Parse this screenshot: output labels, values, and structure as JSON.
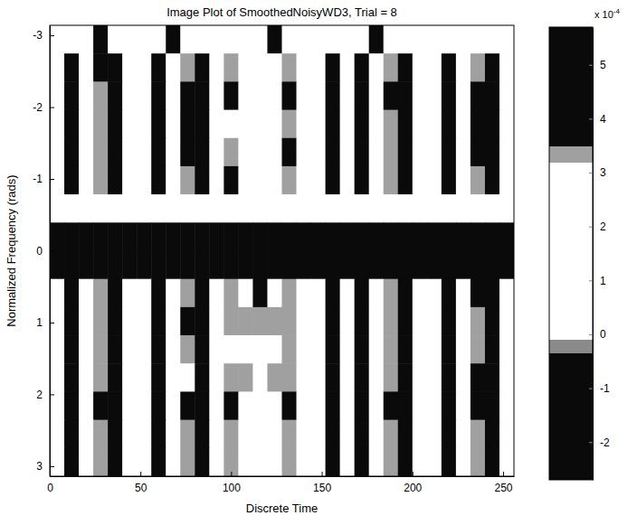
{
  "chart_data": {
    "type": "heatmap",
    "title": "Image Plot of SmoothedNoisyWD3, Trial = 8",
    "x_label": "Discrete Time",
    "y_label": "Normalized Frequency (rads)",
    "xlim": [
      0,
      256
    ],
    "xticks": [
      0,
      50,
      100,
      150,
      200,
      250
    ],
    "ylim": [
      -3.14,
      3.14
    ],
    "yticks": [
      -3,
      -2,
      -1,
      0,
      1,
      2,
      3
    ],
    "x_edges": [
      0,
      8,
      16,
      24,
      32,
      40,
      48,
      56,
      64,
      72,
      80,
      88,
      96,
      104,
      112,
      120,
      128,
      136,
      144,
      152,
      160,
      168,
      176,
      184,
      192,
      200,
      208,
      216,
      224,
      232,
      240,
      248,
      256
    ],
    "y_edges": [
      -3.14,
      -2.7475,
      -2.355,
      -1.9625,
      -1.57,
      -1.1775,
      -0.785,
      -0.3925,
      0,
      0.3925,
      0.785,
      1.1775,
      1.57,
      1.9625,
      2.355,
      2.7475,
      3.14
    ],
    "cells": [
      [
        1.1,
        1.3,
        0.9,
        4.2,
        1.0,
        1.2,
        1.4,
        1.1,
        4.0,
        1.3,
        1.2,
        1.0,
        1.5,
        1.3,
        1.1,
        4.3,
        1.2,
        1.4,
        1.0,
        1.3,
        1.1,
        1.2,
        4.1,
        1.3,
        1.0,
        1.2,
        1.4,
        1.1,
        1.3,
        1.2,
        1.0,
        1.1
      ],
      [
        1.0,
        -1.0,
        1.6,
        3.5,
        -0.8,
        1.5,
        2.0,
        4.2,
        1.4,
        3.4,
        -0.7,
        1.6,
        3.3,
        1.3,
        2.5,
        1.8,
        3.4,
        1.5,
        2.3,
        -0.6,
        1.4,
        4.0,
        1.7,
        3.3,
        -0.5,
        1.5,
        2.0,
        -0.8,
        1.6,
        3.4,
        -1.0,
        1.2
      ],
      [
        1.3,
        -1.3,
        1.9,
        3.3,
        -1.0,
        1.7,
        2.4,
        4.4,
        1.6,
        3.6,
        -0.9,
        1.8,
        3.5,
        1.5,
        2.7,
        2.0,
        3.6,
        1.7,
        2.5,
        -0.8,
        1.6,
        4.2,
        1.9,
        3.5,
        -0.7,
        1.7,
        2.2,
        -1.0,
        1.8,
        3.6,
        -1.2,
        1.4
      ],
      [
        1.1,
        -1.1,
        1.7,
        3.4,
        -0.9,
        1.4,
        2.1,
        4.3,
        1.2,
        3.5,
        -0.8,
        1.5,
        1.6,
        1.2,
        1.4,
        1.7,
        3.4,
        1.3,
        2.2,
        -0.7,
        1.4,
        4.1,
        1.6,
        3.4,
        -0.6,
        1.5,
        2.0,
        -0.9,
        1.6,
        3.5,
        -1.1,
        1.2
      ],
      [
        1.2,
        -1.2,
        1.8,
        3.4,
        -0.9,
        1.6,
        2.3,
        4.3,
        1.5,
        3.5,
        -0.8,
        1.7,
        3.4,
        1.4,
        2.6,
        1.9,
        3.5,
        1.6,
        2.4,
        -0.7,
        1.5,
        4.1,
        1.8,
        3.4,
        -0.6,
        1.6,
        2.1,
        -0.9,
        1.7,
        3.5,
        -1.1,
        1.3
      ],
      [
        1.3,
        -0.9,
        1.5,
        3.3,
        -1.0,
        1.8,
        1.9,
        4.2,
        1.7,
        3.4,
        -0.9,
        1.6,
        3.5,
        1.5,
        2.4,
        2.0,
        3.3,
        1.7,
        2.2,
        -0.8,
        1.6,
        4.0,
        1.7,
        3.3,
        -0.7,
        1.4,
        2.3,
        -1.0,
        1.5,
        3.4,
        -1.2,
        1.4
      ],
      [
        1.4,
        1.2,
        1.6,
        1.8,
        1.3,
        1.5,
        1.7,
        1.4,
        1.6,
        1.5,
        1.3,
        1.8,
        1.5,
        1.7,
        1.4,
        1.6,
        1.5,
        1.3,
        1.7,
        1.4,
        1.6,
        1.5,
        1.8,
        1.4,
        1.3,
        1.6,
        1.5,
        1.7,
        1.4,
        1.6,
        1.5,
        1.3
      ],
      [
        4.8,
        5.2,
        5.1,
        4.9,
        5.3,
        5.0,
        5.2,
        4.9,
        5.1,
        5.3,
        5.0,
        4.8,
        5.2,
        5.1,
        4.9,
        5.3,
        5.0,
        5.2,
        4.8,
        5.1,
        5.3,
        4.9,
        5.0,
        5.2,
        5.1,
        4.8,
        5.3,
        5.0,
        4.9,
        5.2,
        5.1,
        4.8
      ],
      [
        5.1,
        4.9,
        5.3,
        5.0,
        4.8,
        5.2,
        5.1,
        5.3,
        4.9,
        5.0,
        5.2,
        5.1,
        4.8,
        5.3,
        5.0,
        5.2,
        4.9,
        5.1,
        5.3,
        5.0,
        4.8,
        5.2,
        5.1,
        4.9,
        5.3,
        5.0,
        5.2,
        4.8,
        5.1,
        5.0,
        4.9,
        5.2
      ],
      [
        1.5,
        -1.0,
        1.7,
        3.4,
        -0.8,
        1.6,
        2.2,
        4.2,
        1.5,
        3.4,
        -0.7,
        1.7,
        3.4,
        1.6,
        3.5,
        1.5,
        3.4,
        1.6,
        2.3,
        -0.7,
        1.5,
        4.1,
        1.8,
        3.4,
        -0.6,
        1.6,
        2.1,
        -0.8,
        1.7,
        3.5,
        -1.0,
        1.4
      ],
      [
        1.2,
        -1.1,
        1.8,
        3.4,
        -0.9,
        1.7,
        2.3,
        4.3,
        1.6,
        3.5,
        -0.8,
        1.6,
        3.4,
        3.4,
        3.4,
        3.4,
        3.4,
        1.5,
        2.4,
        -0.7,
        1.6,
        4.1,
        1.7,
        3.4,
        -0.6,
        1.5,
        2.2,
        -0.9,
        1.6,
        3.4,
        -1.1,
        1.3
      ],
      [
        1.3,
        -1.2,
        1.6,
        3.3,
        -1.0,
        1.5,
        2.1,
        4.2,
        1.4,
        3.4,
        -0.9,
        1.8,
        1.5,
        1.4,
        1.6,
        1.5,
        3.3,
        1.4,
        2.2,
        -0.8,
        1.5,
        4.0,
        1.9,
        3.3,
        -0.7,
        1.4,
        2.0,
        -1.0,
        1.5,
        3.4,
        -1.2,
        1.2
      ],
      [
        1.1,
        -1.0,
        1.9,
        3.4,
        -0.8,
        1.6,
        2.2,
        4.3,
        1.5,
        1.6,
        -0.8,
        1.7,
        3.4,
        3.4,
        1.7,
        3.4,
        3.4,
        1.6,
        2.3,
        -0.7,
        1.7,
        4.1,
        1.6,
        3.4,
        -0.6,
        1.6,
        2.1,
        -0.9,
        1.7,
        3.5,
        -1.0,
        1.3
      ],
      [
        1.2,
        -1.2,
        1.7,
        3.5,
        -1.0,
        1.8,
        2.4,
        4.4,
        1.7,
        3.5,
        -0.9,
        1.5,
        3.5,
        1.6,
        2.7,
        1.8,
        3.5,
        1.7,
        2.5,
        -0.8,
        1.4,
        4.2,
        1.8,
        3.5,
        -0.7,
        1.7,
        2.3,
        -1.0,
        1.8,
        3.6,
        -1.2,
        1.4
      ],
      [
        1.3,
        -1.1,
        1.6,
        3.4,
        -0.9,
        1.5,
        2.1,
        4.2,
        1.4,
        3.4,
        -0.8,
        1.6,
        3.4,
        1.5,
        2.5,
        1.9,
        3.4,
        1.5,
        2.3,
        -0.7,
        1.6,
        4.1,
        1.7,
        3.4,
        -0.6,
        1.5,
        2.0,
        -0.9,
        1.6,
        3.4,
        -1.1,
        1.2
      ],
      [
        1.2,
        -0.9,
        1.5,
        3.3,
        -0.8,
        1.4,
        2.0,
        4.1,
        1.3,
        3.3,
        -0.7,
        1.5,
        3.3,
        1.4,
        2.4,
        1.8,
        3.3,
        1.4,
        2.2,
        -0.6,
        1.5,
        4.0,
        1.6,
        3.3,
        -0.5,
        1.4,
        1.9,
        -0.8,
        1.5,
        3.3,
        -1.0,
        1.1
      ]
    ],
    "color_range": [
      -2.7,
      5.7
    ],
    "color_ticks": [
      -2,
      -1,
      0,
      1,
      2,
      3,
      4,
      5
    ],
    "color_multiplier": {
      "base": "x 10",
      "exponent": "-4"
    }
  }
}
